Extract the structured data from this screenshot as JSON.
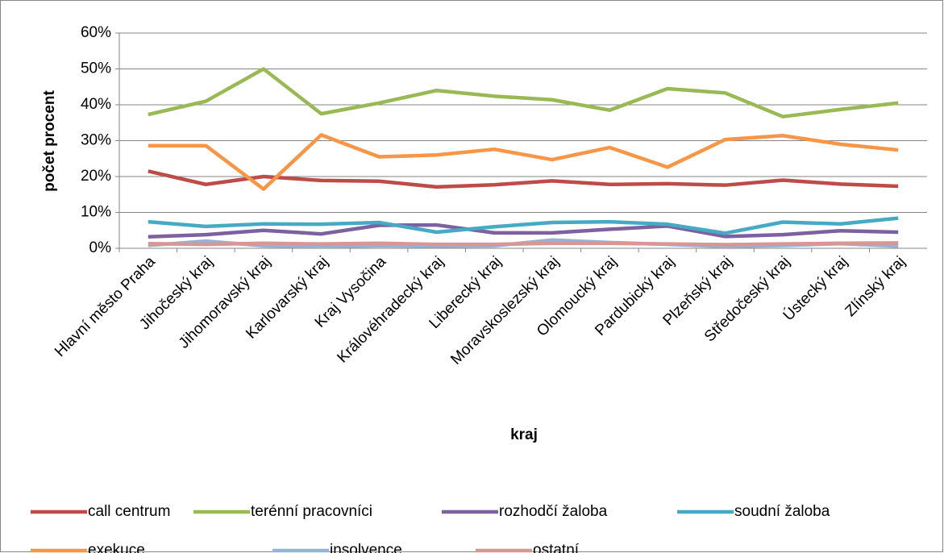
{
  "chart_data": {
    "type": "line",
    "x_label": "kraj",
    "y_label": "počet procent",
    "categories": [
      "Hlavní město Praha",
      "Jihočeský kraj",
      "Jihomoravský kraj",
      "Karlovarský kraj",
      "Kraj Vysočina",
      "Královéhradecký kraj",
      "Liberecký kraj",
      "Moravskoslezský kraj",
      "Olomoucký kraj",
      "Pardubický kraj",
      "Plzeňský kraj",
      "Středočeský kraj",
      "Ústecký kraj",
      "Zlínský kraj"
    ],
    "ylim": [
      0,
      60
    ],
    "yticks": [
      {
        "value": 0,
        "label": "0%"
      },
      {
        "value": 10,
        "label": "10%"
      },
      {
        "value": 20,
        "label": "20%"
      },
      {
        "value": 30,
        "label": "30%"
      },
      {
        "value": 40,
        "label": "40%"
      },
      {
        "value": 50,
        "label": "50%"
      },
      {
        "value": 60,
        "label": "60%"
      }
    ],
    "grid": true,
    "legend": "bottom",
    "series": [
      {
        "name": "call centrum",
        "color": "#be4b48",
        "values": [
          21.5,
          17.8,
          20,
          18.9,
          18.7,
          17.1,
          17.7,
          18.8,
          17.8,
          18,
          17.6,
          19,
          17.9,
          17.3
        ]
      },
      {
        "name": "terénní pracovníci",
        "color": "#98b954",
        "values": [
          37.3,
          41,
          50,
          37.5,
          40.5,
          44,
          42.4,
          41.4,
          38.5,
          44.5,
          43.3,
          36.7,
          38.7,
          40.5
        ]
      },
      {
        "name": "rozhodčí žaloba",
        "color": "#7d60a0",
        "values": [
          3.2,
          3.8,
          5,
          4,
          6.4,
          6.5,
          4.3,
          4.3,
          5.3,
          6.2,
          3.3,
          3.8,
          4.9,
          4.5
        ]
      },
      {
        "name": "soudní žaloba",
        "color": "#46aac5",
        "values": [
          7.4,
          6.1,
          6.8,
          6.7,
          7.2,
          4.5,
          6,
          7.2,
          7.4,
          6.7,
          4.2,
          7.3,
          6.8,
          8.4
        ]
      },
      {
        "name": "exekuce",
        "color": "#f79646",
        "values": [
          28.6,
          28.6,
          16.5,
          31.6,
          25.5,
          26,
          27.6,
          24.7,
          28.1,
          22.6,
          30.3,
          31.4,
          29,
          27.4
        ]
      },
      {
        "name": "insolvence",
        "color": "#95b3d7",
        "values": [
          0.8,
          2,
          0.7,
          0.5,
          0.7,
          0.6,
          0.7,
          2.3,
          1.6,
          1.1,
          0.5,
          0.8,
          1.3,
          0.6
        ]
      },
      {
        "name": "ostatní",
        "color": "#d99694",
        "values": [
          1.3,
          1.1,
          1.4,
          1.2,
          1.4,
          1.1,
          1.1,
          1.4,
          1.4,
          1.2,
          1,
          1.2,
          1.4,
          1.5
        ]
      }
    ]
  }
}
